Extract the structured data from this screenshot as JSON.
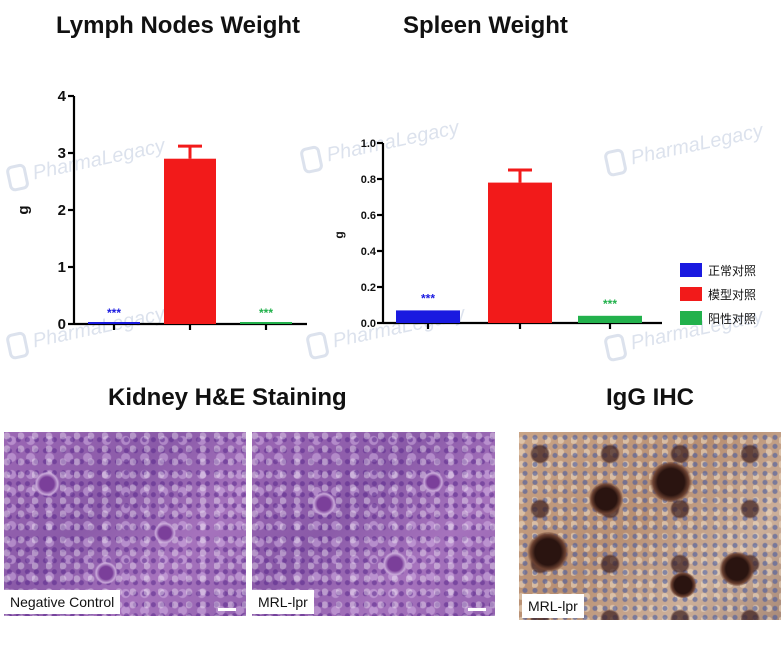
{
  "titles": {
    "lymph": "Lymph Nodes Weight",
    "spleen": "Spleen Weight",
    "kidney": "Kidney H&E Staining",
    "igg": "IgG IHC"
  },
  "colors": {
    "normal": "#1a1ae0",
    "model": "#f21a1a",
    "positive": "#22b14c"
  },
  "chart_data": [
    {
      "type": "bar",
      "title": "Lymph Nodes Weight",
      "ylabel": "g",
      "ylim": [
        0,
        4
      ],
      "yticks": [
        "0",
        "1",
        "2",
        "3",
        "4"
      ],
      "categories": [
        "正常对照",
        "模型对照",
        "阳性对照"
      ],
      "values": [
        0.02,
        2.9,
        0.02
      ],
      "errors": [
        0,
        0.22,
        0
      ],
      "significance": [
        "***",
        "",
        "***"
      ],
      "colors": [
        "#1a1ae0",
        "#f21a1a",
        "#22b14c"
      ]
    },
    {
      "type": "bar",
      "title": "Spleen Weight",
      "ylabel": "g",
      "ylim": [
        0,
        1.0
      ],
      "yticks": [
        "0.0",
        "0.2",
        "0.4",
        "0.6",
        "0.8",
        "1.0"
      ],
      "categories": [
        "正常对照",
        "模型对照",
        "阳性对照"
      ],
      "values": [
        0.07,
        0.78,
        0.04
      ],
      "errors": [
        0,
        0.07,
        0
      ],
      "significance": [
        "***",
        "",
        "***"
      ],
      "colors": [
        "#1a1ae0",
        "#f21a1a",
        "#22b14c"
      ]
    }
  ],
  "legend": [
    {
      "label": "正常对照",
      "color": "#1a1ae0"
    },
    {
      "label": "模型对照",
      "color": "#f21a1a"
    },
    {
      "label": "阳性对照",
      "color": "#22b14c"
    }
  ],
  "watermark": "PharmaLegacy",
  "panels": {
    "negative_control": "Negative Control",
    "mrl_lpr_he": "MRL-lpr",
    "mrl_lpr_ihc": "MRL-lpr"
  }
}
